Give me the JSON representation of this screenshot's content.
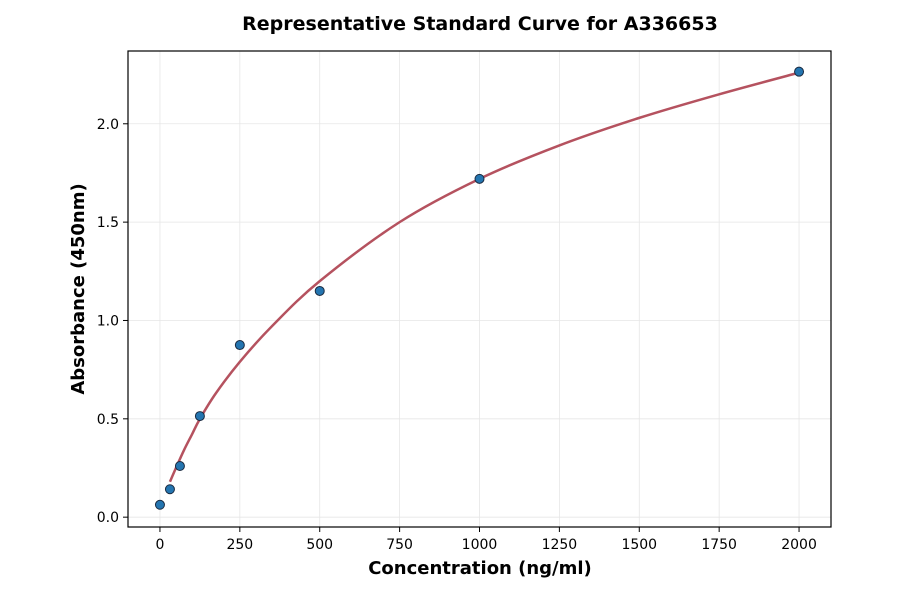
{
  "chart_data": {
    "type": "scatter",
    "title": "Representative Standard Curve for A336653",
    "xlabel": "Concentration (ng/ml)",
    "ylabel": "Absorbance (450nm)",
    "xlim": [
      -100,
      2100
    ],
    "ylim": [
      -0.05,
      2.37
    ],
    "xticks": [
      0,
      250,
      500,
      750,
      1000,
      1250,
      1500,
      1750,
      2000
    ],
    "yticks": [
      0.0,
      0.5,
      1.0,
      1.5,
      2.0
    ],
    "ytick_labels": [
      "0.0",
      "0.5",
      "1.0",
      "1.5",
      "2.0"
    ],
    "grid": true,
    "points": {
      "x": [
        0,
        31.25,
        62.5,
        125,
        250,
        500,
        1000,
        2000
      ],
      "y": [
        0.063,
        0.142,
        0.26,
        0.514,
        0.875,
        1.15,
        1.72,
        2.265
      ]
    },
    "fit_curve": {
      "x": [
        31.25,
        50,
        75,
        100,
        125,
        175,
        250,
        350,
        500,
        750,
        1000,
        1250,
        1500,
        1750,
        2000
      ],
      "y": [
        0.18,
        0.25,
        0.34,
        0.42,
        0.5,
        0.63,
        0.79,
        0.97,
        1.2,
        1.5,
        1.72,
        1.89,
        2.03,
        2.15,
        2.26
      ]
    },
    "colors": {
      "points": "#2475b0",
      "point_edge": "#1a2a40",
      "curve": "#b5525f"
    }
  }
}
